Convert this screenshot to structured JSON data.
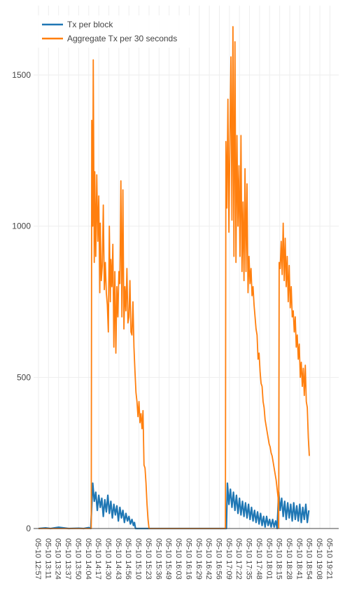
{
  "chart_data": {
    "type": "line",
    "title": "",
    "xlabel": "",
    "ylabel": "",
    "ylim": [
      0,
      1650
    ],
    "yticks": [
      0,
      500,
      1000,
      1500
    ],
    "grid": true,
    "legend_position": "top-left",
    "x_tick_labels": [
      "05-10 12:57",
      "05-10 13:11",
      "05-10 13:24",
      "05-10 13:37",
      "05-10 13:50",
      "05-10 14:04",
      "05-10 14:17",
      "05-10 14:30",
      "05-10 14:43",
      "05-10 14:56",
      "05-10 15:10",
      "05-10 15:23",
      "05-10 15:36",
      "05-10 15:49",
      "05-10 16:03",
      "05-10 16:16",
      "05-10 16:29",
      "05-10 16:42",
      "05-10 16:56",
      "05-10 17:09",
      "05-10 17:22",
      "05-10 17:35",
      "05-10 17:48",
      "05-10 18:01",
      "05-10 18:15",
      "05-10 18:28",
      "05-10 18:41",
      "05-10 18:54",
      "05-10 19:08",
      "05-10 19:21"
    ],
    "series": [
      {
        "name": "Tx per block",
        "color": "#1f77b4",
        "points": [
          [
            0,
            0
          ],
          [
            0.7,
            2
          ],
          [
            1.2,
            0
          ],
          [
            2,
            4
          ],
          [
            3,
            0
          ],
          [
            4,
            1
          ],
          [
            4.5,
            0
          ],
          [
            5,
            3
          ],
          [
            5.2,
            0
          ],
          [
            5.4,
            150
          ],
          [
            5.55,
            90
          ],
          [
            5.7,
            120
          ],
          [
            5.85,
            60
          ],
          [
            6,
            110
          ],
          [
            6.15,
            70
          ],
          [
            6.3,
            100
          ],
          [
            6.45,
            40
          ],
          [
            6.6,
            95
          ],
          [
            6.75,
            55
          ],
          [
            6.9,
            110
          ],
          [
            7.05,
            50
          ],
          [
            7.2,
            90
          ],
          [
            7.35,
            35
          ],
          [
            7.5,
            80
          ],
          [
            7.65,
            45
          ],
          [
            7.8,
            75
          ],
          [
            7.95,
            25
          ],
          [
            8.1,
            70
          ],
          [
            8.25,
            35
          ],
          [
            8.4,
            60
          ],
          [
            8.55,
            20
          ],
          [
            8.7,
            50
          ],
          [
            8.85,
            25
          ],
          [
            9,
            40
          ],
          [
            9.15,
            15
          ],
          [
            9.3,
            30
          ],
          [
            9.45,
            10
          ],
          [
            9.55,
            20
          ],
          [
            9.65,
            0
          ],
          [
            10,
            0
          ],
          [
            11,
            0
          ],
          [
            12,
            0
          ],
          [
            13,
            0
          ],
          [
            14,
            0
          ],
          [
            15,
            0
          ],
          [
            16,
            0
          ],
          [
            17,
            0
          ],
          [
            18,
            0
          ],
          [
            18.5,
            0
          ],
          [
            18.7,
            0
          ],
          [
            18.8,
            150
          ],
          [
            18.95,
            80
          ],
          [
            19.1,
            130
          ],
          [
            19.25,
            70
          ],
          [
            19.4,
            120
          ],
          [
            19.55,
            60
          ],
          [
            19.7,
            110
          ],
          [
            19.85,
            50
          ],
          [
            20,
            100
          ],
          [
            20.15,
            45
          ],
          [
            20.3,
            90
          ],
          [
            20.45,
            40
          ],
          [
            20.6,
            85
          ],
          [
            20.75,
            35
          ],
          [
            20.9,
            80
          ],
          [
            21.05,
            30
          ],
          [
            21.2,
            70
          ],
          [
            21.35,
            25
          ],
          [
            21.5,
            60
          ],
          [
            21.65,
            20
          ],
          [
            21.8,
            55
          ],
          [
            21.95,
            15
          ],
          [
            22.1,
            50
          ],
          [
            22.25,
            10
          ],
          [
            22.4,
            40
          ],
          [
            22.55,
            5
          ],
          [
            22.7,
            40
          ],
          [
            22.85,
            10
          ],
          [
            23,
            30
          ],
          [
            23.15,
            5
          ],
          [
            23.3,
            30
          ],
          [
            23.45,
            5
          ],
          [
            23.6,
            25
          ],
          [
            23.75,
            0
          ],
          [
            23.9,
            120
          ],
          [
            24.05,
            60
          ],
          [
            24.2,
            100
          ],
          [
            24.35,
            40
          ],
          [
            24.5,
            90
          ],
          [
            24.65,
            30
          ],
          [
            24.8,
            85
          ],
          [
            24.95,
            35
          ],
          [
            25.1,
            80
          ],
          [
            25.25,
            25
          ],
          [
            25.4,
            85
          ],
          [
            25.55,
            30
          ],
          [
            25.7,
            75
          ],
          [
            25.85,
            25
          ],
          [
            26,
            80
          ],
          [
            26.15,
            20
          ],
          [
            26.3,
            70
          ],
          [
            26.45,
            30
          ],
          [
            26.6,
            80
          ],
          [
            26.75,
            20
          ],
          [
            26.9,
            60
          ]
        ]
      },
      {
        "name": "Aggregate Tx per 30 seconds",
        "color": "#ff7f0e",
        "points": [
          [
            0,
            0
          ],
          [
            5,
            0
          ],
          [
            5.25,
            0
          ],
          [
            5.3,
            1350
          ],
          [
            5.4,
            1000
          ],
          [
            5.45,
            1550
          ],
          [
            5.55,
            880
          ],
          [
            5.6,
            1180
          ],
          [
            5.7,
            900
          ],
          [
            5.8,
            1170
          ],
          [
            5.9,
            950
          ],
          [
            6,
            1100
          ],
          [
            6.1,
            780
          ],
          [
            6.15,
            1010
          ],
          [
            6.25,
            820
          ],
          [
            6.35,
            870
          ],
          [
            6.45,
            1070
          ],
          [
            6.55,
            790
          ],
          [
            6.65,
            880
          ],
          [
            6.75,
            780
          ],
          [
            6.85,
            740
          ],
          [
            6.95,
            650
          ],
          [
            7.05,
            1000
          ],
          [
            7.15,
            750
          ],
          [
            7.2,
            890
          ],
          [
            7.3,
            800
          ],
          [
            7.4,
            940
          ],
          [
            7.5,
            600
          ],
          [
            7.6,
            850
          ],
          [
            7.7,
            580
          ],
          [
            7.8,
            800
          ],
          [
            7.9,
            700
          ],
          [
            8,
            850
          ],
          [
            8.1,
            810
          ],
          [
            8.2,
            1150
          ],
          [
            8.3,
            700
          ],
          [
            8.4,
            1120
          ],
          [
            8.5,
            660
          ],
          [
            8.6,
            800
          ],
          [
            8.7,
            720
          ],
          [
            8.8,
            860
          ],
          [
            8.9,
            680
          ],
          [
            9,
            700
          ],
          [
            9.1,
            820
          ],
          [
            9.2,
            650
          ],
          [
            9.3,
            640
          ],
          [
            9.4,
            750
          ],
          [
            9.5,
            600
          ],
          [
            9.6,
            520
          ],
          [
            9.7,
            450
          ],
          [
            9.8,
            420
          ],
          [
            9.9,
            370
          ],
          [
            10,
            420
          ],
          [
            10.1,
            350
          ],
          [
            10.2,
            380
          ],
          [
            10.3,
            330
          ],
          [
            10.4,
            390
          ],
          [
            10.5,
            210
          ],
          [
            10.6,
            200
          ],
          [
            10.7,
            150
          ],
          [
            10.8,
            80
          ],
          [
            10.9,
            30
          ],
          [
            11,
            0
          ],
          [
            12,
            0
          ],
          [
            13,
            0
          ],
          [
            14,
            0
          ],
          [
            15,
            0
          ],
          [
            16,
            0
          ],
          [
            17,
            0
          ],
          [
            18,
            0
          ],
          [
            18.6,
            0
          ],
          [
            18.65,
            1280
          ],
          [
            18.75,
            1060
          ],
          [
            18.85,
            1420
          ],
          [
            18.95,
            980
          ],
          [
            19.05,
            1280
          ],
          [
            19.15,
            1560
          ],
          [
            19.25,
            1020
          ],
          [
            19.35,
            1660
          ],
          [
            19.45,
            900
          ],
          [
            19.55,
            1610
          ],
          [
            19.65,
            880
          ],
          [
            19.75,
            1300
          ],
          [
            19.85,
            1000
          ],
          [
            19.95,
            1200
          ],
          [
            20.05,
            900
          ],
          [
            20.15,
            1300
          ],
          [
            20.25,
            850
          ],
          [
            20.35,
            1080
          ],
          [
            20.45,
            820
          ],
          [
            20.55,
            1190
          ],
          [
            20.65,
            850
          ],
          [
            20.75,
            1140
          ],
          [
            20.85,
            780
          ],
          [
            20.95,
            900
          ],
          [
            21.05,
            810
          ],
          [
            21.15,
            860
          ],
          [
            21.25,
            770
          ],
          [
            21.35,
            800
          ],
          [
            21.45,
            740
          ],
          [
            21.55,
            700
          ],
          [
            21.65,
            660
          ],
          [
            21.75,
            640
          ],
          [
            21.85,
            560
          ],
          [
            21.95,
            580
          ],
          [
            22.05,
            520
          ],
          [
            22.15,
            480
          ],
          [
            22.25,
            470
          ],
          [
            22.35,
            420
          ],
          [
            22.45,
            400
          ],
          [
            22.55,
            360
          ],
          [
            22.65,
            340
          ],
          [
            22.75,
            320
          ],
          [
            22.85,
            300
          ],
          [
            22.95,
            280
          ],
          [
            23.05,
            270
          ],
          [
            23.15,
            250
          ],
          [
            23.25,
            240
          ],
          [
            23.35,
            220
          ],
          [
            23.45,
            200
          ],
          [
            23.55,
            180
          ],
          [
            23.65,
            160
          ],
          [
            23.75,
            130
          ],
          [
            23.85,
            100
          ],
          [
            23.9,
            0
          ],
          [
            23.95,
            880
          ],
          [
            24.05,
            860
          ],
          [
            24.15,
            950
          ],
          [
            24.25,
            840
          ],
          [
            24.35,
            1010
          ],
          [
            24.45,
            820
          ],
          [
            24.55,
            960
          ],
          [
            24.65,
            800
          ],
          [
            24.75,
            900
          ],
          [
            24.85,
            750
          ],
          [
            24.95,
            870
          ],
          [
            25.05,
            730
          ],
          [
            25.15,
            800
          ],
          [
            25.25,
            700
          ],
          [
            25.35,
            720
          ],
          [
            25.45,
            650
          ],
          [
            25.55,
            700
          ],
          [
            25.65,
            600
          ],
          [
            25.75,
            640
          ],
          [
            25.85,
            560
          ],
          [
            25.95,
            610
          ],
          [
            26.05,
            500
          ],
          [
            26.15,
            550
          ],
          [
            26.25,
            470
          ],
          [
            26.35,
            530
          ],
          [
            26.45,
            440
          ],
          [
            26.55,
            540
          ],
          [
            26.65,
            420
          ],
          [
            26.75,
            400
          ],
          [
            26.85,
            300
          ],
          [
            26.95,
            240
          ]
        ]
      }
    ]
  }
}
